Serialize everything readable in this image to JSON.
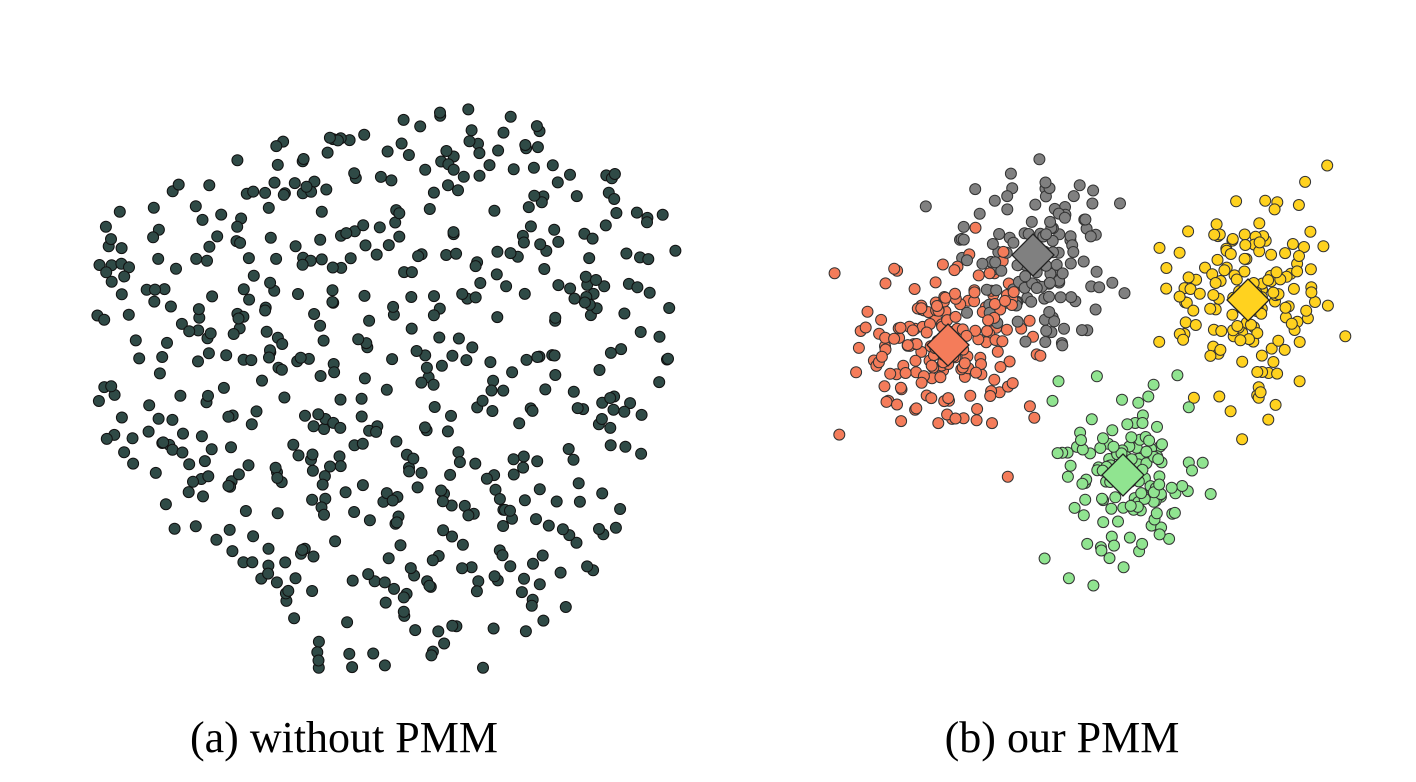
{
  "chart_data": [
    {
      "type": "scatter",
      "caption": "(a) without PMM",
      "colors": {
        "points": "#2f4a46",
        "stroke": "#111111"
      },
      "series": [
        {
          "n_points": 560,
          "color": "#2f4a46"
        }
      ]
    },
    {
      "type": "scatter",
      "caption": "(b) our PMM",
      "colors": {
        "stroke": "#333333"
      },
      "series": [
        {
          "color": "#f47c5a",
          "n_points": 180,
          "prototype": true
        },
        {
          "color": "#808080",
          "n_points": 130,
          "prototype": true
        },
        {
          "color": "#ffd21f",
          "n_points": 160,
          "prototype": true
        },
        {
          "color": "#90e490",
          "n_points": 140,
          "prototype": true
        }
      ]
    }
  ]
}
